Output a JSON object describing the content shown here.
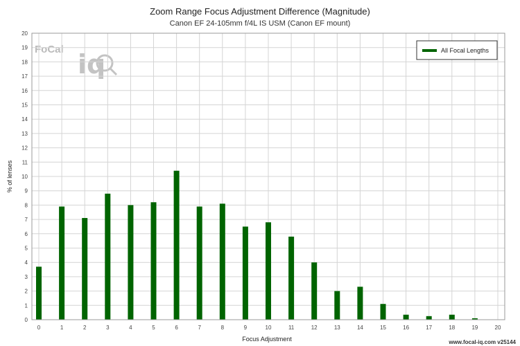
{
  "chart_data": {
    "type": "bar",
    "title": "Zoom Range Focus Adjustment Difference (Magnitude)",
    "subtitle": "Canon EF 24-105mm f/4L IS USM (Canon EF mount)",
    "xlabel": "Focus Adjustment",
    "ylabel": "% of lenses",
    "x": [
      0,
      1,
      2,
      3,
      4,
      5,
      6,
      7,
      8,
      9,
      10,
      11,
      12,
      13,
      14,
      15,
      16,
      17,
      18,
      19,
      20
    ],
    "xlim": [
      0,
      20
    ],
    "ylim": [
      0,
      20
    ],
    "yticks": [
      0,
      1,
      2,
      3,
      4,
      5,
      6,
      7,
      8,
      9,
      10,
      11,
      12,
      13,
      14,
      15,
      16,
      17,
      18,
      19,
      20
    ],
    "grid": true,
    "legend_position": "top-right",
    "series": [
      {
        "name": "All Focal Lengths",
        "color": "#006400",
        "values": [
          3.7,
          7.9,
          7.1,
          8.8,
          8.0,
          8.2,
          10.4,
          7.9,
          8.1,
          6.5,
          6.8,
          5.8,
          4.0,
          2.0,
          2.3,
          1.1,
          0.35,
          0.25,
          0.35,
          0.1,
          0
        ]
      }
    ]
  },
  "watermark": {
    "logo_text": "FoCal",
    "logo_mark": "iq"
  },
  "footer": {
    "text": "www.focal-iq.com v25144"
  }
}
